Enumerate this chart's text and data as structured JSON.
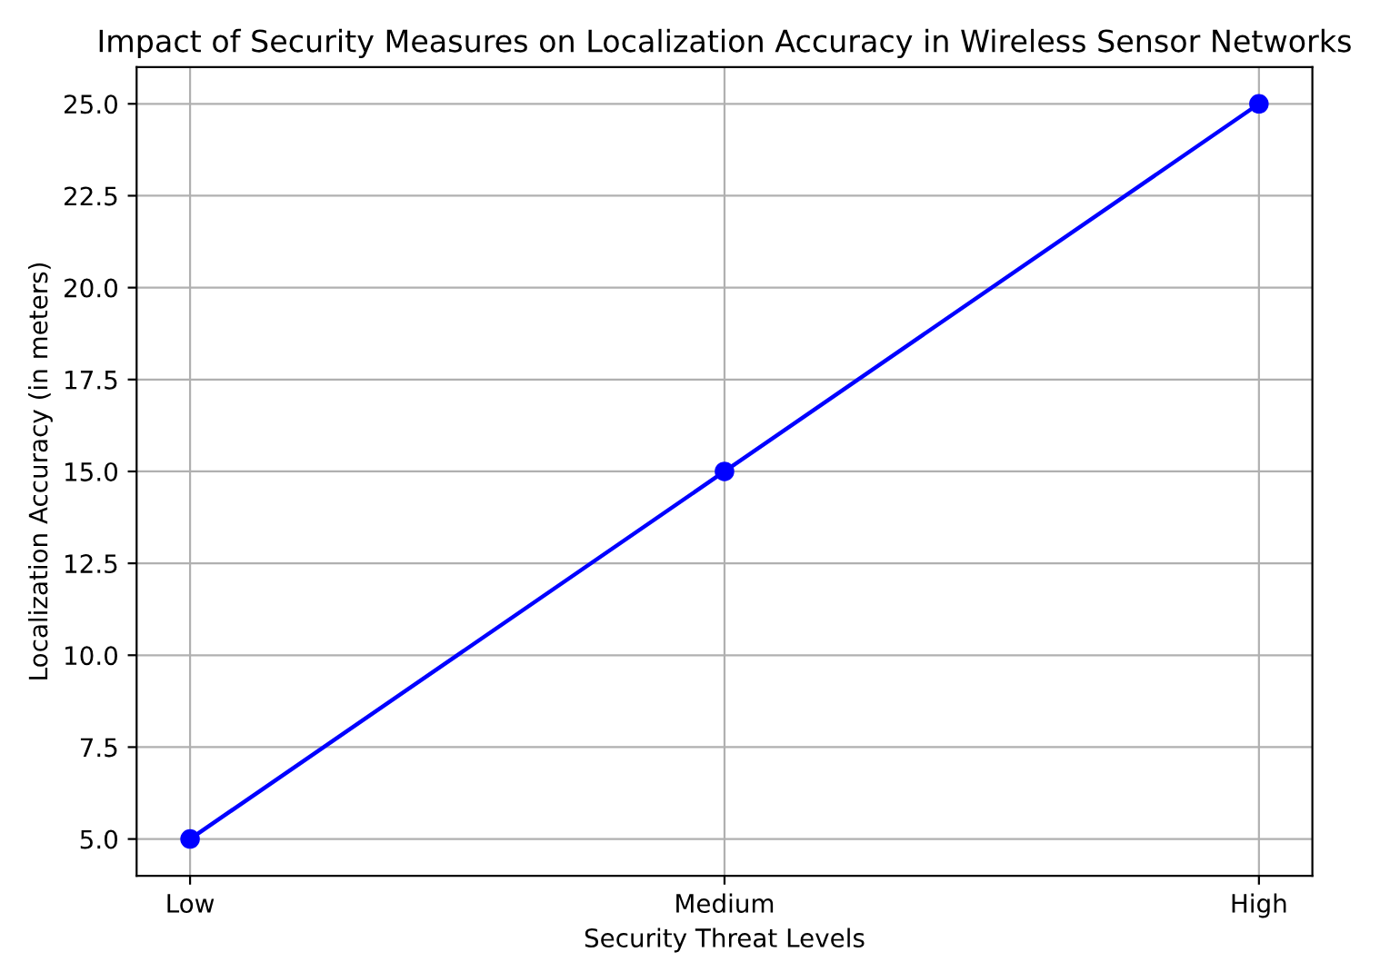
{
  "chart_data": {
    "type": "line",
    "title": "Impact of Security Measures on Localization Accuracy in Wireless Sensor Networks",
    "xlabel": "Security Threat Levels",
    "ylabel": "Localization Accuracy (in meters)",
    "categories": [
      "Low",
      "Medium",
      "High"
    ],
    "series": [
      {
        "color": "#0000ff",
        "values": [
          5,
          15,
          25
        ]
      }
    ],
    "ylim": [
      4,
      26
    ],
    "yticks": [
      {
        "value": 5,
        "label": "5.0"
      },
      {
        "value": 7.5,
        "label": "7.5"
      },
      {
        "value": 10,
        "label": "10.0"
      },
      {
        "value": 12.5,
        "label": "12.5"
      },
      {
        "value": 15,
        "label": "15.0"
      },
      {
        "value": 17.5,
        "label": "17.5"
      },
      {
        "value": 20,
        "label": "20.0"
      },
      {
        "value": 22.5,
        "label": "22.5"
      },
      {
        "value": 25,
        "label": "25.0"
      }
    ],
    "grid": true,
    "marker": "circle",
    "line_style": "solid"
  }
}
